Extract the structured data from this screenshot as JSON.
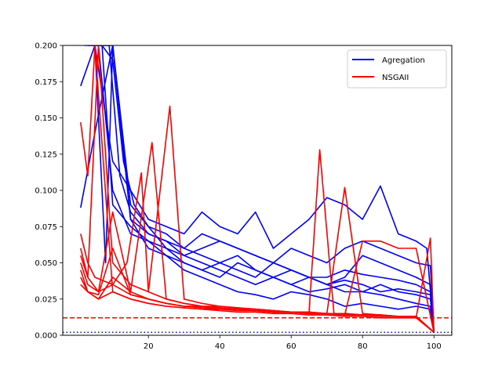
{
  "chart_data": {
    "type": "line",
    "xlim": [
      -4,
      105
    ],
    "ylim": [
      0,
      0.2
    ],
    "x_ticks": [
      20,
      40,
      60,
      80,
      100
    ],
    "x_tick_labels": [
      "20",
      "40",
      "60",
      "80",
      "100"
    ],
    "y_ticks": [
      0,
      0.025,
      0.05,
      0.075,
      0.1,
      0.125,
      0.15,
      0.175,
      0.2
    ],
    "y_tick_labels": [
      "0.000",
      "0.025",
      "0.050",
      "0.075",
      "0.100",
      "0.125",
      "0.150",
      "0.175",
      "0.200"
    ],
    "grid": false,
    "legend_placement": "top-right",
    "legend": [
      {
        "label": "Agregation",
        "color": "#0000ff"
      },
      {
        "label": "NSGAII",
        "color": "#ff0000"
      }
    ],
    "reference_lines": [
      {
        "y": 0.012,
        "color": "#ff0000",
        "style": "dashed"
      },
      {
        "y": 0.002,
        "color": "#0000ff",
        "style": "dotted"
      }
    ],
    "series": [
      {
        "group": "Agregation",
        "color": "#0000ff",
        "x": [
          1,
          5,
          10,
          15,
          20,
          25,
          30,
          35,
          40,
          45,
          50,
          55,
          60,
          65,
          70,
          75,
          80,
          85,
          90,
          95,
          99,
          100
        ],
        "y": [
          0.172,
          0.2,
          0.2,
          0.09,
          0.075,
          0.06,
          0.05,
          0.045,
          0.04,
          0.05,
          0.045,
          0.04,
          0.035,
          0.04,
          0.035,
          0.03,
          0.03,
          0.035,
          0.03,
          0.028,
          0.025,
          0.002
        ]
      },
      {
        "group": "Agregation",
        "color": "#0000ff",
        "x": [
          1,
          5,
          10,
          15,
          20,
          25,
          30,
          35,
          40,
          45,
          50,
          55,
          60,
          65,
          70,
          75,
          80,
          85,
          90,
          95,
          99,
          100
        ],
        "y": [
          0.088,
          0.14,
          0.2,
          0.08,
          0.07,
          0.065,
          0.06,
          0.07,
          0.065,
          0.06,
          0.055,
          0.05,
          0.06,
          0.055,
          0.05,
          0.06,
          0.065,
          0.06,
          0.055,
          0.05,
          0.048,
          0.002
        ]
      },
      {
        "group": "Agregation",
        "color": "#0000ff",
        "x": [
          2,
          5,
          10,
          15,
          20,
          25,
          30,
          35,
          40,
          45,
          50,
          55,
          60,
          65,
          70,
          75,
          80,
          85,
          90,
          95,
          98,
          100
        ],
        "y": [
          0.2,
          0.2,
          0.12,
          0.1,
          0.08,
          0.075,
          0.07,
          0.085,
          0.075,
          0.07,
          0.085,
          0.06,
          0.07,
          0.08,
          0.095,
          0.09,
          0.08,
          0.103,
          0.07,
          0.065,
          0.06,
          0.002
        ]
      },
      {
        "group": "Agregation",
        "color": "#0000ff",
        "x": [
          3,
          6,
          10,
          15,
          20,
          25,
          30,
          35,
          40,
          45,
          50,
          55,
          60,
          65,
          70,
          75,
          80,
          85,
          90,
          95,
          99,
          100
        ],
        "y": [
          0.2,
          0.2,
          0.1,
          0.07,
          0.065,
          0.06,
          0.055,
          0.05,
          0.045,
          0.04,
          0.035,
          0.04,
          0.035,
          0.03,
          0.032,
          0.035,
          0.03,
          0.028,
          0.025,
          0.022,
          0.02,
          0.002
        ]
      },
      {
        "group": "Agregation",
        "color": "#0000ff",
        "x": [
          4,
          7,
          10,
          15,
          20,
          25,
          30,
          35,
          40,
          45,
          50,
          55,
          60,
          65,
          70,
          75,
          80,
          85,
          90,
          95,
          99,
          100
        ],
        "y": [
          0.2,
          0.2,
          0.09,
          0.075,
          0.065,
          0.055,
          0.05,
          0.045,
          0.05,
          0.045,
          0.04,
          0.05,
          0.045,
          0.04,
          0.035,
          0.04,
          0.055,
          0.05,
          0.045,
          0.04,
          0.035,
          0.002
        ]
      },
      {
        "group": "Agregation",
        "color": "#0000ff",
        "x": [
          5,
          8,
          10,
          15,
          20,
          25,
          30,
          35,
          40,
          45,
          50,
          55,
          60,
          65,
          70,
          75,
          80,
          85,
          90,
          95,
          99,
          100
        ],
        "y": [
          0.2,
          0.05,
          0.2,
          0.08,
          0.06,
          0.055,
          0.045,
          0.04,
          0.035,
          0.03,
          0.028,
          0.025,
          0.03,
          0.028,
          0.025,
          0.02,
          0.022,
          0.02,
          0.018,
          0.02,
          0.018,
          0.002
        ]
      },
      {
        "group": "Agregation",
        "color": "#0000ff",
        "x": [
          6,
          9,
          12,
          15,
          20,
          25,
          30,
          35,
          40,
          45,
          50,
          55,
          60,
          65,
          70,
          75,
          80,
          85,
          90,
          95,
          99,
          100
        ],
        "y": [
          0.2,
          0.2,
          0.11,
          0.085,
          0.07,
          0.065,
          0.055,
          0.06,
          0.065,
          0.06,
          0.055,
          0.05,
          0.045,
          0.04,
          0.04,
          0.045,
          0.042,
          0.04,
          0.038,
          0.035,
          0.03,
          0.002
        ]
      },
      {
        "group": "Agregation",
        "color": "#0000ff",
        "x": [
          7,
          10,
          13,
          16,
          20,
          25,
          30,
          35,
          40,
          45,
          50,
          55,
          60,
          65,
          70,
          75,
          80,
          85,
          90,
          95,
          99,
          100
        ],
        "y": [
          0.2,
          0.19,
          0.12,
          0.09,
          0.075,
          0.07,
          0.06,
          0.055,
          0.05,
          0.055,
          0.045,
          0.04,
          0.045,
          0.04,
          0.035,
          0.038,
          0.035,
          0.03,
          0.032,
          0.03,
          0.028,
          0.002
        ]
      },
      {
        "group": "NSGAII",
        "color": "#ff0000",
        "x": [
          1,
          3,
          5,
          10,
          15,
          20,
          25,
          30,
          35,
          40,
          45,
          50,
          55,
          60,
          65,
          70,
          75,
          80,
          85,
          90,
          95,
          100
        ],
        "y": [
          0.147,
          0.11,
          0.2,
          0.03,
          0.025,
          0.022,
          0.02,
          0.019,
          0.018,
          0.017,
          0.016,
          0.016,
          0.015,
          0.015,
          0.014,
          0.014,
          0.013,
          0.013,
          0.012,
          0.012,
          0.012,
          0.002
        ]
      },
      {
        "group": "NSGAII",
        "color": "#ff0000",
        "x": [
          1,
          3,
          5,
          10,
          15,
          20,
          25,
          30,
          35,
          40,
          45,
          50,
          55,
          60,
          65,
          70,
          75,
          80,
          85,
          90,
          95,
          100
        ],
        "y": [
          0.07,
          0.05,
          0.04,
          0.035,
          0.028,
          0.025,
          0.022,
          0.02,
          0.02,
          0.018,
          0.018,
          0.017,
          0.017,
          0.016,
          0.015,
          0.015,
          0.014,
          0.014,
          0.013,
          0.013,
          0.013,
          0.002
        ]
      },
      {
        "group": "NSGAII",
        "color": "#ff0000",
        "x": [
          1,
          3,
          6,
          10,
          15,
          20,
          26,
          30,
          35,
          40,
          45,
          50,
          55,
          60,
          65,
          70,
          75,
          80,
          85,
          90,
          95,
          100
        ],
        "y": [
          0.055,
          0.04,
          0.2,
          0.05,
          0.035,
          0.03,
          0.158,
          0.025,
          0.022,
          0.02,
          0.019,
          0.018,
          0.017,
          0.016,
          0.016,
          0.015,
          0.015,
          0.014,
          0.014,
          0.013,
          0.013,
          0.002
        ]
      },
      {
        "group": "NSGAII",
        "color": "#ff0000",
        "x": [
          1,
          3,
          6,
          10,
          15,
          21,
          25,
          30,
          35,
          40,
          45,
          50,
          55,
          60,
          65,
          70,
          75,
          80,
          85,
          90,
          95,
          100
        ],
        "y": [
          0.05,
          0.035,
          0.03,
          0.085,
          0.03,
          0.133,
          0.025,
          0.022,
          0.02,
          0.02,
          0.019,
          0.018,
          0.017,
          0.016,
          0.016,
          0.015,
          0.015,
          0.014,
          0.014,
          0.013,
          0.013,
          0.002
        ]
      },
      {
        "group": "NSGAII",
        "color": "#ff0000",
        "x": [
          1,
          3,
          6,
          10,
          15,
          20,
          25,
          30,
          35,
          40,
          45,
          50,
          55,
          60,
          65,
          68,
          72,
          75,
          80,
          85,
          90,
          95,
          100
        ],
        "y": [
          0.045,
          0.03,
          0.028,
          0.06,
          0.028,
          0.025,
          0.022,
          0.02,
          0.02,
          0.019,
          0.018,
          0.018,
          0.017,
          0.016,
          0.016,
          0.128,
          0.015,
          0.015,
          0.014,
          0.014,
          0.013,
          0.013,
          0.002
        ]
      },
      {
        "group": "NSGAII",
        "color": "#ff0000",
        "x": [
          1,
          3,
          6,
          10,
          15,
          20,
          25,
          30,
          35,
          40,
          45,
          50,
          55,
          60,
          65,
          70,
          75,
          80,
          85,
          90,
          95,
          100
        ],
        "y": [
          0.04,
          0.03,
          0.025,
          0.04,
          0.03,
          0.025,
          0.022,
          0.02,
          0.019,
          0.018,
          0.018,
          0.017,
          0.016,
          0.016,
          0.015,
          0.015,
          0.102,
          0.015,
          0.014,
          0.013,
          0.013,
          0.002
        ]
      },
      {
        "group": "NSGAII",
        "color": "#ff0000",
        "x": [
          1,
          3,
          6,
          10,
          15,
          20,
          25,
          30,
          35,
          40,
          45,
          50,
          55,
          60,
          65,
          70,
          75,
          80,
          85,
          90,
          95,
          100
        ],
        "y": [
          0.035,
          0.03,
          0.025,
          0.03,
          0.025,
          0.022,
          0.02,
          0.019,
          0.018,
          0.018,
          0.017,
          0.017,
          0.016,
          0.016,
          0.015,
          0.015,
          0.014,
          0.065,
          0.065,
          0.06,
          0.06,
          0.002
        ]
      },
      {
        "group": "NSGAII",
        "color": "#ff0000",
        "x": [
          1,
          3,
          6,
          10,
          14,
          18,
          20,
          25,
          30,
          35,
          40,
          45,
          50,
          55,
          60,
          65,
          70,
          75,
          80,
          85,
          90,
          95,
          99,
          100
        ],
        "y": [
          0.06,
          0.04,
          0.03,
          0.035,
          0.05,
          0.112,
          0.03,
          0.025,
          0.022,
          0.02,
          0.019,
          0.018,
          0.017,
          0.016,
          0.016,
          0.015,
          0.015,
          0.014,
          0.014,
          0.013,
          0.013,
          0.012,
          0.067,
          0.002
        ]
      }
    ]
  }
}
